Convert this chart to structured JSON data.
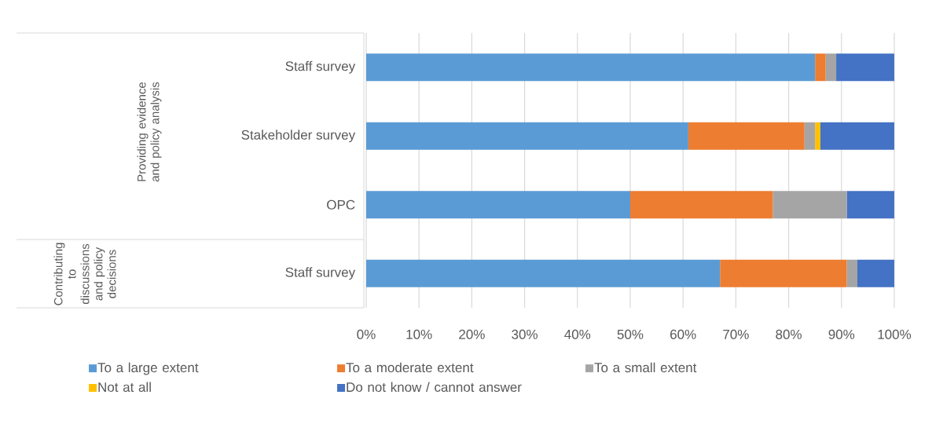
{
  "chart_data": {
    "type": "bar",
    "orientation": "horizontal",
    "stacked": true,
    "categories": [
      "Staff survey",
      "Stakeholder survey",
      "OPC",
      "Staff survey"
    ],
    "series": [
      {
        "name": "To a large extent",
        "color": "#5b9bd5",
        "values": [
          85,
          61,
          50,
          67
        ]
      },
      {
        "name": "To a moderate extent",
        "color": "#ed7d31",
        "values": [
          2,
          22,
          27,
          24
        ]
      },
      {
        "name": "To a small extent",
        "color": "#a5a5a5",
        "values": [
          2,
          2,
          14,
          2
        ]
      },
      {
        "name": "Not at all",
        "color": "#ffc000",
        "values": [
          0,
          1,
          0,
          0
        ]
      },
      {
        "name": "Do not know / cannot answer",
        "color": "#4472c4",
        "values": [
          11,
          14,
          9,
          7
        ]
      }
    ],
    "xlim": [
      0,
      100
    ],
    "xticks": [
      {
        "value": 0,
        "label": "0%"
      },
      {
        "value": 10,
        "label": "10%"
      },
      {
        "value": 20,
        "label": "20%"
      },
      {
        "value": 30,
        "label": "30%"
      },
      {
        "value": 40,
        "label": "40%"
      },
      {
        "value": 50,
        "label": "50%"
      },
      {
        "value": 60,
        "label": "60%"
      },
      {
        "value": 70,
        "label": "70%"
      },
      {
        "value": 80,
        "label": "80%"
      },
      {
        "value": 90,
        "label": "90%"
      },
      {
        "value": 100,
        "label": "100%"
      }
    ],
    "annotations": [
      "Providing evidence and policy analysis",
      "Contributing to discussions and policy decisions"
    ],
    "grid": "x",
    "legend": "bottom"
  }
}
